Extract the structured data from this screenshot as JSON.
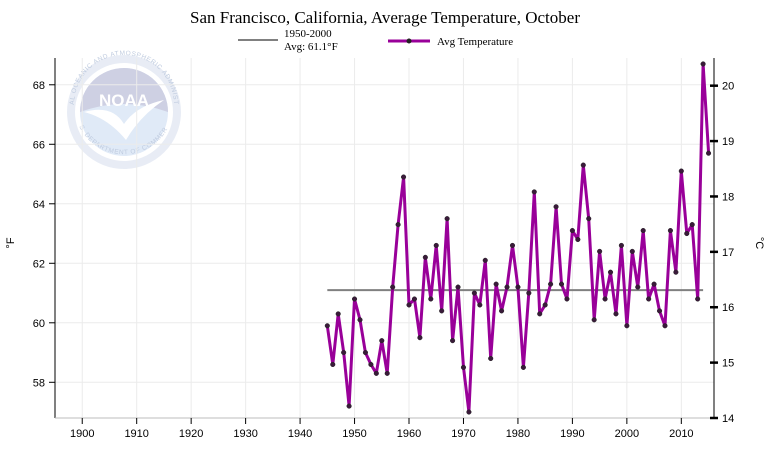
{
  "chart_data": {
    "type": "line",
    "title": "San Francisco, California, Average Temperature, October",
    "xlabel": "",
    "ylabel": "°F",
    "y2label": "°C",
    "xlim": [
      1895,
      2016
    ],
    "ylim": [
      56.8,
      68.9
    ],
    "y2lim": [
      14.0,
      20.5
    ],
    "xticks": [
      1900,
      1910,
      1920,
      1930,
      1940,
      1950,
      1960,
      1970,
      1980,
      1990,
      2000,
      2010
    ],
    "yticks": [
      58,
      60,
      62,
      64,
      66,
      68
    ],
    "y2ticks": [
      14,
      15,
      16,
      17,
      18,
      19,
      20
    ],
    "grid": true,
    "legend_position": "top",
    "reference": {
      "name": "1950-2000",
      "label": "Avg: 61.1°F",
      "value": 61.1,
      "x_range": [
        1945,
        2014
      ],
      "color": "#808080"
    },
    "series": [
      {
        "name": "Avg Temperature",
        "color": "#990099",
        "x": [
          1945,
          1946,
          1947,
          1948,
          1949,
          1950,
          1951,
          1952,
          1953,
          1954,
          1955,
          1956,
          1957,
          1958,
          1959,
          1960,
          1961,
          1962,
          1963,
          1964,
          1965,
          1966,
          1967,
          1968,
          1969,
          1970,
          1971,
          1972,
          1973,
          1974,
          1975,
          1976,
          1977,
          1978,
          1979,
          1980,
          1981,
          1982,
          1983,
          1984,
          1985,
          1986,
          1987,
          1988,
          1989,
          1990,
          1991,
          1992,
          1993,
          1994,
          1995,
          1996,
          1997,
          1998,
          1999,
          2000,
          2001,
          2002,
          2003,
          2004,
          2005,
          2006,
          2007,
          2008,
          2009,
          2010,
          2011,
          2012,
          2013,
          2014,
          2015
        ],
        "values": [
          59.9,
          58.6,
          60.3,
          59.0,
          57.2,
          60.8,
          60.1,
          59.0,
          58.6,
          58.3,
          59.4,
          58.3,
          61.2,
          63.3,
          64.9,
          60.6,
          60.8,
          59.5,
          62.2,
          60.8,
          62.6,
          60.4,
          63.5,
          59.4,
          61.2,
          58.5,
          57.0,
          61.0,
          60.6,
          62.1,
          58.8,
          61.3,
          60.4,
          61.2,
          62.6,
          61.2,
          58.5,
          61.0,
          64.4,
          60.3,
          60.6,
          61.3,
          63.9,
          61.3,
          60.8,
          63.1,
          62.8,
          65.3,
          63.5,
          60.1,
          62.4,
          60.8,
          61.7,
          60.3,
          62.6,
          59.9,
          62.4,
          61.2,
          63.1,
          60.8,
          61.3,
          60.4,
          59.9,
          63.1,
          61.7,
          65.1,
          63.0,
          63.3,
          60.8,
          68.7,
          65.7
        ]
      }
    ]
  },
  "watermark": {
    "logo_text": "NOAA",
    "ring_top": "NATIONAL OCEANIC AND ATMOSPHERIC ADMINISTRATION",
    "ring_bottom": "U.S. DEPARTMENT OF COMMERCE"
  }
}
